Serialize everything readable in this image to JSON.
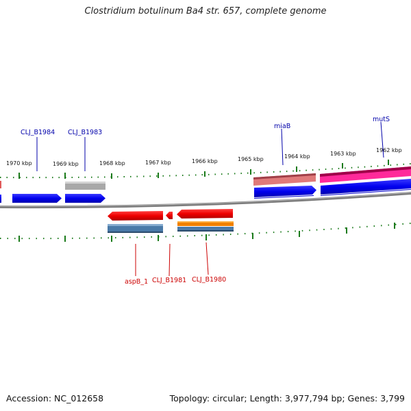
{
  "title": "Clostridium botulinum Ba4 str. 657, complete genome",
  "footer": {
    "accession": "Accession: NC_012658",
    "summary": "Topology: circular; Length: 3,977,794 bp; Genes: 3,799"
  },
  "kbp_labels": [
    "1970 kbp",
    "1969 kbp",
    "1968 kbp",
    "1967 kbp",
    "1966 kbp",
    "1965 kbp",
    "1964 kbp",
    "1963 kbp",
    "1962 kbp"
  ],
  "gene_labels": {
    "clj_b1984": "CLJ_B1984",
    "clj_b1983": "CLJ_B1983",
    "miab": "miaB",
    "muts": "mutS",
    "aspb_1": "aspB_1",
    "clj_b1981": "CLJ_B1981",
    "clj_b1980": "CLJ_B1980"
  },
  "colors": {
    "forward_gene": "#0000ee",
    "reverse_gene": "#ee0000",
    "label_forward": "#0000aa",
    "label_reverse": "#cc0000",
    "ticks": "#1a7a1a",
    "backbone": "#808080",
    "muts_band": "#e0006e",
    "miab_band": "#c0505a",
    "grey_band": "#a8a8a8",
    "steel_band": "#4a7aa8",
    "orange_band": "#f08000"
  }
}
